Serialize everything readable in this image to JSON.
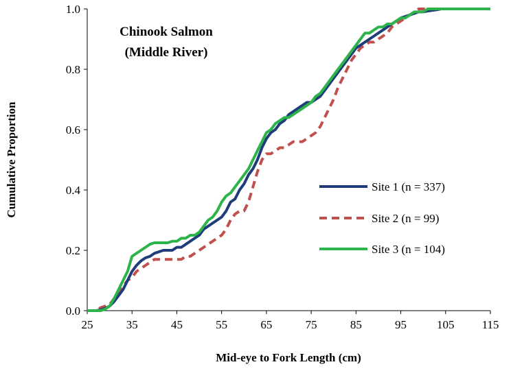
{
  "chart_data": {
    "type": "line",
    "title_lines": [
      "Chinook  Salmon",
      "(Middle  River)"
    ],
    "xlabel": "Mid-eye to Fork Length (cm)",
    "ylabel": "Cumulative Proportion",
    "xlim": [
      25,
      115
    ],
    "ylim": [
      0,
      1
    ],
    "x_ticks": [
      "25",
      "35",
      "45",
      "55",
      "65",
      "75",
      "85",
      "95",
      "105",
      "115"
    ],
    "y_ticks": [
      "0.0",
      "0.2",
      "0.4",
      "0.6",
      "0.8",
      "1.0"
    ],
    "grid": false,
    "legend_position": "right-middle",
    "series": [
      {
        "name": "Site 1 (n = 337)",
        "color": "#1f3d7a",
        "dash": "solid",
        "x": [
          25,
          27,
          28,
          29,
          30,
          31,
          32,
          33,
          34,
          35,
          36,
          37,
          38,
          39,
          40,
          41,
          42,
          43,
          44,
          45,
          46,
          47,
          48,
          49,
          50,
          51,
          52,
          53,
          54,
          55,
          56,
          57,
          58,
          59,
          60,
          61,
          62,
          63,
          64,
          65,
          66,
          67,
          68,
          69,
          70,
          71,
          72,
          73,
          74,
          75,
          76,
          77,
          78,
          79,
          80,
          81,
          82,
          83,
          84,
          85,
          86,
          87,
          88,
          89,
          90,
          91,
          92,
          93,
          94,
          95,
          96,
          97,
          98,
          99,
          100,
          101,
          102,
          103,
          104,
          105,
          106,
          107,
          108,
          109,
          110,
          111,
          112,
          113,
          114,
          115
        ],
        "y": [
          0,
          0,
          0.003,
          0.008,
          0.015,
          0.03,
          0.05,
          0.07,
          0.1,
          0.13,
          0.15,
          0.165,
          0.175,
          0.18,
          0.19,
          0.195,
          0.2,
          0.2,
          0.2,
          0.21,
          0.21,
          0.22,
          0.23,
          0.24,
          0.25,
          0.27,
          0.28,
          0.29,
          0.3,
          0.31,
          0.33,
          0.36,
          0.37,
          0.4,
          0.42,
          0.45,
          0.47,
          0.5,
          0.54,
          0.57,
          0.59,
          0.6,
          0.62,
          0.63,
          0.65,
          0.66,
          0.67,
          0.68,
          0.69,
          0.69,
          0.7,
          0.71,
          0.73,
          0.75,
          0.77,
          0.79,
          0.81,
          0.83,
          0.85,
          0.87,
          0.88,
          0.89,
          0.9,
          0.91,
          0.92,
          0.93,
          0.94,
          0.95,
          0.96,
          0.97,
          0.975,
          0.98,
          0.985,
          0.99,
          0.99,
          0.993,
          0.995,
          0.997,
          1,
          1,
          1,
          1,
          1,
          1,
          1,
          1,
          1,
          1,
          1,
          1
        ]
      },
      {
        "name": "Site 2 (n = 99)",
        "color": "#c0504d",
        "dash": "dashed",
        "x": [
          25,
          27,
          28,
          29,
          30,
          31,
          32,
          33,
          34,
          35,
          36,
          37,
          38,
          39,
          40,
          41,
          42,
          43,
          44,
          45,
          46,
          47,
          48,
          49,
          50,
          51,
          52,
          53,
          54,
          55,
          56,
          57,
          58,
          59,
          60,
          61,
          62,
          63,
          64,
          65,
          66,
          67,
          68,
          69,
          70,
          71,
          72,
          73,
          74,
          75,
          76,
          77,
          78,
          79,
          80,
          81,
          82,
          83,
          84,
          85,
          86,
          87,
          88,
          89,
          90,
          91,
          92,
          93,
          94,
          95,
          96,
          97,
          98,
          99,
          100,
          101,
          102,
          103,
          104,
          105,
          106,
          107,
          108,
          109,
          110,
          111,
          112,
          113,
          114,
          115
        ],
        "y": [
          0,
          0,
          0.01,
          0.015,
          0.02,
          0.04,
          0.06,
          0.08,
          0.1,
          0.11,
          0.13,
          0.14,
          0.15,
          0.16,
          0.17,
          0.17,
          0.17,
          0.17,
          0.17,
          0.17,
          0.17,
          0.18,
          0.18,
          0.19,
          0.2,
          0.21,
          0.22,
          0.23,
          0.24,
          0.25,
          0.27,
          0.3,
          0.32,
          0.33,
          0.33,
          0.36,
          0.41,
          0.46,
          0.5,
          0.52,
          0.52,
          0.53,
          0.54,
          0.54,
          0.55,
          0.56,
          0.56,
          0.56,
          0.57,
          0.58,
          0.59,
          0.61,
          0.64,
          0.67,
          0.7,
          0.74,
          0.77,
          0.8,
          0.83,
          0.85,
          0.87,
          0.88,
          0.89,
          0.89,
          0.9,
          0.91,
          0.92,
          0.94,
          0.95,
          0.96,
          0.97,
          0.98,
          0.99,
          1,
          1,
          1,
          1,
          1,
          1,
          1,
          1,
          1,
          1,
          1,
          1,
          1,
          1,
          1,
          1,
          1
        ]
      },
      {
        "name": "Site 3 (n = 104)",
        "color": "#2db34a",
        "dash": "solid",
        "x": [
          25,
          27,
          28,
          29,
          30,
          31,
          32,
          33,
          34,
          35,
          36,
          37,
          38,
          39,
          40,
          41,
          42,
          43,
          44,
          45,
          46,
          47,
          48,
          49,
          50,
          51,
          52,
          53,
          54,
          55,
          56,
          57,
          58,
          59,
          60,
          61,
          62,
          63,
          64,
          65,
          66,
          67,
          68,
          69,
          70,
          71,
          72,
          73,
          74,
          75,
          76,
          77,
          78,
          79,
          80,
          81,
          82,
          83,
          84,
          85,
          86,
          87,
          88,
          89,
          90,
          91,
          92,
          93,
          94,
          95,
          96,
          97,
          98,
          99,
          100,
          101,
          102,
          103,
          104,
          105,
          106,
          107,
          108,
          109,
          110,
          111,
          112,
          113,
          114,
          115
        ],
        "y": [
          0,
          0,
          0,
          0.005,
          0.015,
          0.04,
          0.07,
          0.1,
          0.13,
          0.18,
          0.19,
          0.2,
          0.21,
          0.22,
          0.225,
          0.225,
          0.225,
          0.225,
          0.23,
          0.23,
          0.24,
          0.24,
          0.25,
          0.25,
          0.26,
          0.28,
          0.3,
          0.31,
          0.33,
          0.36,
          0.38,
          0.39,
          0.41,
          0.43,
          0.45,
          0.47,
          0.5,
          0.53,
          0.56,
          0.59,
          0.6,
          0.62,
          0.63,
          0.64,
          0.64,
          0.65,
          0.66,
          0.67,
          0.68,
          0.69,
          0.71,
          0.72,
          0.74,
          0.76,
          0.78,
          0.8,
          0.82,
          0.84,
          0.86,
          0.88,
          0.9,
          0.92,
          0.92,
          0.93,
          0.94,
          0.94,
          0.95,
          0.95,
          0.96,
          0.97,
          0.97,
          0.98,
          0.99,
          0.99,
          0.99,
          1,
          1,
          1,
          1,
          1,
          1,
          1,
          1,
          1,
          1,
          1,
          1,
          1,
          1,
          1
        ]
      }
    ]
  }
}
